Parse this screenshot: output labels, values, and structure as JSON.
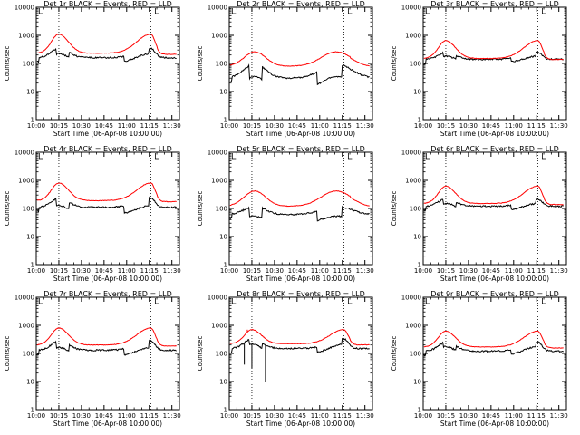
{
  "chart_data": {
    "type": "line",
    "xlabel_template": "Start Time (06-Apr-08 10:00:00)",
    "ylabel": "Counts/sec",
    "x_ticks": [
      "10:00",
      "10:15",
      "10:30",
      "10:45",
      "11:00",
      "11:15",
      "11:30"
    ],
    "x_range_minutes": [
      0,
      95
    ],
    "y_scale": "log",
    "y_range": [
      1,
      10000
    ],
    "y_ticks": [
      "1",
      "10",
      "100",
      "1000",
      "10000"
    ],
    "dotted_vlines_minutes": [
      15,
      76
    ],
    "series_colors": {
      "events": "#000000",
      "lld": "#ff0000"
    },
    "panels": [
      {
        "title": "Det 1r BLACK = Events, RED = LLD",
        "profile": "a",
        "lld_base": 230,
        "lld_peak": 1100,
        "ev_base": 160,
        "ev_peak": 420,
        "gap_factor": 0.65
      },
      {
        "title": "Det 2r BLACK = Events, RED = LLD",
        "profile": "b",
        "lld_base": 80,
        "lld_peak": 260,
        "ev_base": 30,
        "ev_peak": 130,
        "gap_factor": 0.35
      },
      {
        "title": "Det 3r BLACK = Events, RED = LLD",
        "profile": "a",
        "lld_base": 150,
        "lld_peak": 650,
        "ev_base": 140,
        "ev_peak": 280,
        "gap_factor": 0.75
      },
      {
        "title": "Det 4r BLACK = Events, RED = LLD",
        "profile": "a",
        "lld_base": 190,
        "lld_peak": 800,
        "ev_base": 110,
        "ev_peak": 280,
        "gap_factor": 0.55
      },
      {
        "title": "Det 5r BLACK = Events, RED = LLD",
        "profile": "b",
        "lld_base": 120,
        "lld_peak": 420,
        "ev_base": 60,
        "ev_peak": 140,
        "gap_factor": 0.45
      },
      {
        "title": "Det 6r BLACK = Events, RED = LLD",
        "profile": "a",
        "lld_base": 150,
        "lld_peak": 620,
        "ev_base": 120,
        "ev_peak": 250,
        "gap_factor": 0.7
      },
      {
        "title": "Det 7r BLACK = Events, RED = LLD",
        "profile": "a",
        "lld_base": 200,
        "lld_peak": 800,
        "ev_base": 130,
        "ev_peak": 330,
        "gap_factor": 0.6
      },
      {
        "title": "Det 8r BLACK = Events, RED = LLD",
        "profile": "c",
        "lld_base": 220,
        "lld_peak": 700,
        "ev_base": 150,
        "ev_peak": 400,
        "gap_factor": 0.65
      },
      {
        "title": "Det 9r BLACK = Events, RED = LLD",
        "profile": "a",
        "lld_base": 170,
        "lld_peak": 620,
        "ev_base": 120,
        "ev_peak": 300,
        "gap_factor": 0.7
      }
    ]
  }
}
